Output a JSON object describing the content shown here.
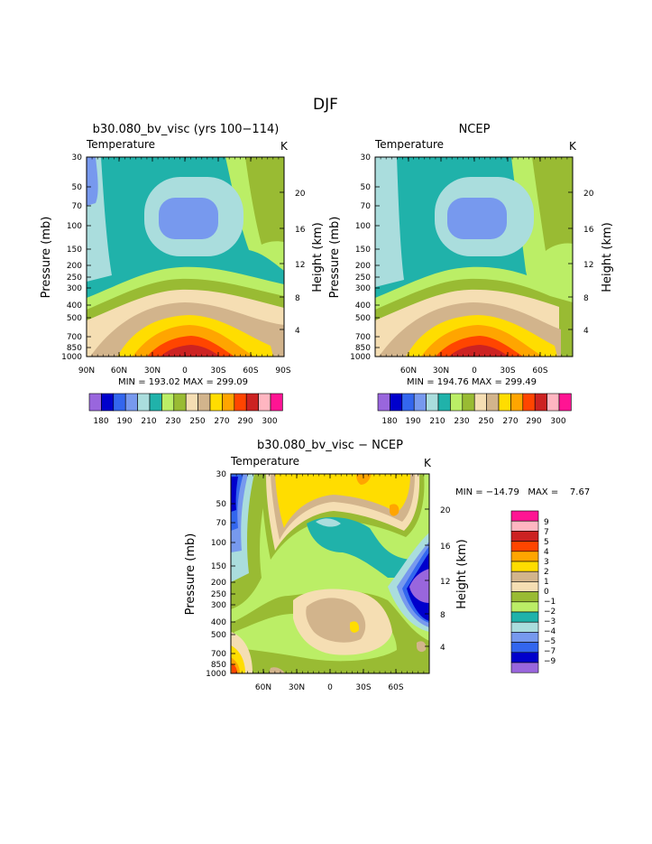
{
  "figure_title": "DJF",
  "chart_data": [
    {
      "type": "heatmap",
      "id": "model",
      "title": "b30.080_bv_visc (yrs 100−114)",
      "subtitle": "Temperature",
      "units": "K",
      "ylabel": "Pressure (mb)",
      "ylabel_right": "Height (km)",
      "x_ticks": [
        "90N",
        "60N",
        "30N",
        "0",
        "30S",
        "60S",
        "90S"
      ],
      "y_ticks": [
        "30",
        "50",
        "70",
        "100",
        "150",
        "200",
        "250",
        "300",
        "400",
        "500",
        "700",
        "850",
        "1000"
      ],
      "y_ticks_right": [
        "20",
        "16",
        "12",
        "8",
        "4"
      ],
      "stats": "MIN = 193.02   MAX = 299.09",
      "colorbar_labels": [
        "180",
        "190",
        "210",
        "230",
        "250",
        "270",
        "290",
        "300"
      ]
    },
    {
      "type": "heatmap",
      "id": "ncep",
      "title": "NCEP",
      "subtitle": "Temperature",
      "units": "K",
      "ylabel": "Pressure (mb)",
      "ylabel_right": "Height (km)",
      "x_ticks": [
        "60N",
        "30N",
        "0",
        "30S",
        "60S"
      ],
      "y_ticks": [
        "30",
        "50",
        "70",
        "100",
        "150",
        "200",
        "250",
        "300",
        "400",
        "500",
        "700",
        "850",
        "1000"
      ],
      "y_ticks_right": [
        "20",
        "16",
        "12",
        "8",
        "4"
      ],
      "stats": "MIN = 194.76   MAX = 299.49",
      "colorbar_labels": [
        "180",
        "190",
        "210",
        "230",
        "250",
        "270",
        "290",
        "300"
      ]
    },
    {
      "type": "heatmap",
      "id": "diff",
      "title": "b30.080_bv_visc − NCEP",
      "subtitle": "Temperature",
      "units": "K",
      "ylabel": "Pressure (mb)",
      "ylabel_right": "Height (km)",
      "x_ticks": [
        "60N",
        "30N",
        "0",
        "30S",
        "60S"
      ],
      "y_ticks": [
        "30",
        "50",
        "70",
        "100",
        "150",
        "200",
        "250",
        "300",
        "400",
        "500",
        "700",
        "850",
        "1000"
      ],
      "y_ticks_right": [
        "20",
        "16",
        "12",
        "8",
        "4"
      ],
      "stats": "MIN = −14.79   MAX =    7.67",
      "colorbar_labels": [
        "9",
        "7",
        "5",
        "4",
        "3",
        "2",
        "1",
        "0",
        "−1",
        "−2",
        "−3",
        "−4",
        "−5",
        "−7",
        "−9"
      ]
    }
  ],
  "palette_abs": [
    "#9966dd",
    "#0000cc",
    "#3366ee",
    "#7799ee",
    "#aadddd",
    "#20b2aa",
    "#bbee66",
    "#99bb33",
    "#f5deb3",
    "#d2b48c",
    "#ffdd00",
    "#ffa500",
    "#ff4500",
    "#cc2222",
    "#ffb6c1",
    "#ff1493"
  ],
  "palette_diff": [
    "#ff1493",
    "#ffb6c1",
    "#cc2222",
    "#ff4500",
    "#ffa500",
    "#ffdd00",
    "#d2b48c",
    "#f5deb3",
    "#99bb33",
    "#bbee66",
    "#20b2aa",
    "#aadddd",
    "#7799ee",
    "#3366ee",
    "#0000cc",
    "#9966dd"
  ]
}
